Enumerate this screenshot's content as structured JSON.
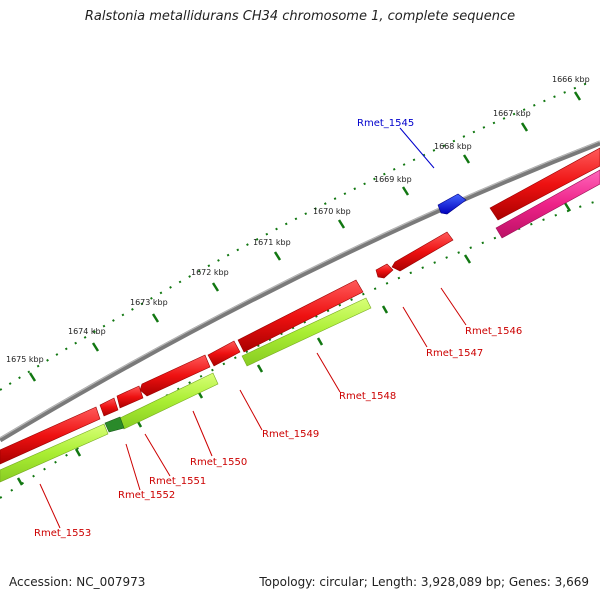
{
  "title": "Ralstonia metallidurans CH34 chromosome 1, complete sequence",
  "footer": {
    "accession": "Accession: NC_007973",
    "summary": "Topology: circular; Length: 3,928,089 bp; Genes: 3,669"
  },
  "ticks": [
    "1666 kbp",
    "1667 kbp",
    "1668 kbp",
    "1669 kbp",
    "1670 kbp",
    "1671 kbp",
    "1672 kbp",
    "1673 kbp",
    "1674 kbp",
    "1675 kbp"
  ],
  "genes": [
    {
      "label": "Rmet_1545",
      "color": "#0000cc"
    },
    {
      "label": "Rmet_1546",
      "color": "#cc0000"
    },
    {
      "label": "Rmet_1547",
      "color": "#cc0000"
    },
    {
      "label": "Rmet_1548",
      "color": "#cc0000"
    },
    {
      "label": "Rmet_1549",
      "color": "#cc0000"
    },
    {
      "label": "Rmet_1550",
      "color": "#cc0000"
    },
    {
      "label": "Rmet_1551",
      "color": "#cc0000"
    },
    {
      "label": "Rmet_1552",
      "color": "#cc0000"
    },
    {
      "label": "Rmet_1553",
      "color": "#cc0000"
    }
  ],
  "colors": {
    "backbone": "#808080",
    "cds": "#ee1111",
    "cds_dark": "#aa0000",
    "rna": "#aaee33",
    "pseudo": "#ee2288",
    "highlight": "#1111dd",
    "tick": "#117711"
  }
}
